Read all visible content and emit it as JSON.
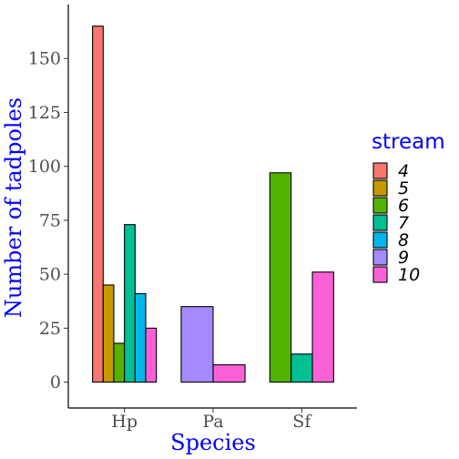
{
  "chart_data": {
    "type": "bar",
    "title": "",
    "xlabel": "Species",
    "ylabel": "Number of tadpoles",
    "ylim": [
      -12,
      175
    ],
    "yticks": [
      0,
      25,
      50,
      75,
      100,
      125,
      150
    ],
    "categories": [
      "Hp",
      "Pa",
      "Sf"
    ],
    "legend": {
      "title": "stream",
      "position": "right",
      "entries": [
        "4",
        "5",
        "6",
        "7",
        "8",
        "9",
        "10"
      ]
    },
    "colors": {
      "4": "#F8766D",
      "5": "#C49A00",
      "6": "#53B400",
      "7": "#00C094",
      "8": "#00B6EB",
      "9": "#A58AFF",
      "10": "#FB61D7"
    },
    "groups": [
      {
        "category": "Hp",
        "bars": [
          {
            "stream": "4",
            "value": 165
          },
          {
            "stream": "5",
            "value": 45
          },
          {
            "stream": "6",
            "value": 18
          },
          {
            "stream": "7",
            "value": 73
          },
          {
            "stream": "8",
            "value": 41
          },
          {
            "stream": "10",
            "value": 25
          }
        ]
      },
      {
        "category": "Pa",
        "bars": [
          {
            "stream": "9",
            "value": 35
          },
          {
            "stream": "10",
            "value": 8
          }
        ]
      },
      {
        "category": "Sf",
        "bars": [
          {
            "stream": "6",
            "value": 97
          },
          {
            "stream": "7",
            "value": 13
          },
          {
            "stream": "10",
            "value": 51
          }
        ]
      }
    ],
    "grid": false
  }
}
